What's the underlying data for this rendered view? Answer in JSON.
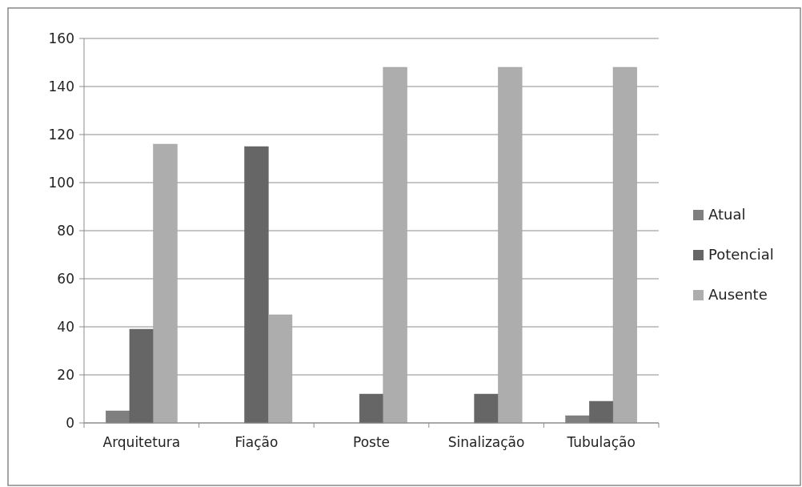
{
  "chart_data": {
    "type": "bar",
    "categories": [
      "Arquitetura",
      "Fiação",
      "Poste",
      "Sinalização",
      "Tubulação"
    ],
    "series": [
      {
        "name": "Atual",
        "color": "#7f7f7f",
        "values": [
          5,
          0,
          0,
          0,
          3
        ]
      },
      {
        "name": "Potencial",
        "color": "#666666",
        "values": [
          39,
          115,
          12,
          12,
          9
        ]
      },
      {
        "name": "Ausente",
        "color": "#adadad",
        "values": [
          116,
          45,
          148,
          148,
          148
        ]
      }
    ],
    "ylim": [
      0,
      160
    ],
    "yticks": [
      0,
      20,
      40,
      60,
      80,
      100,
      120,
      140,
      160
    ],
    "grid": "y",
    "legend": "right"
  }
}
